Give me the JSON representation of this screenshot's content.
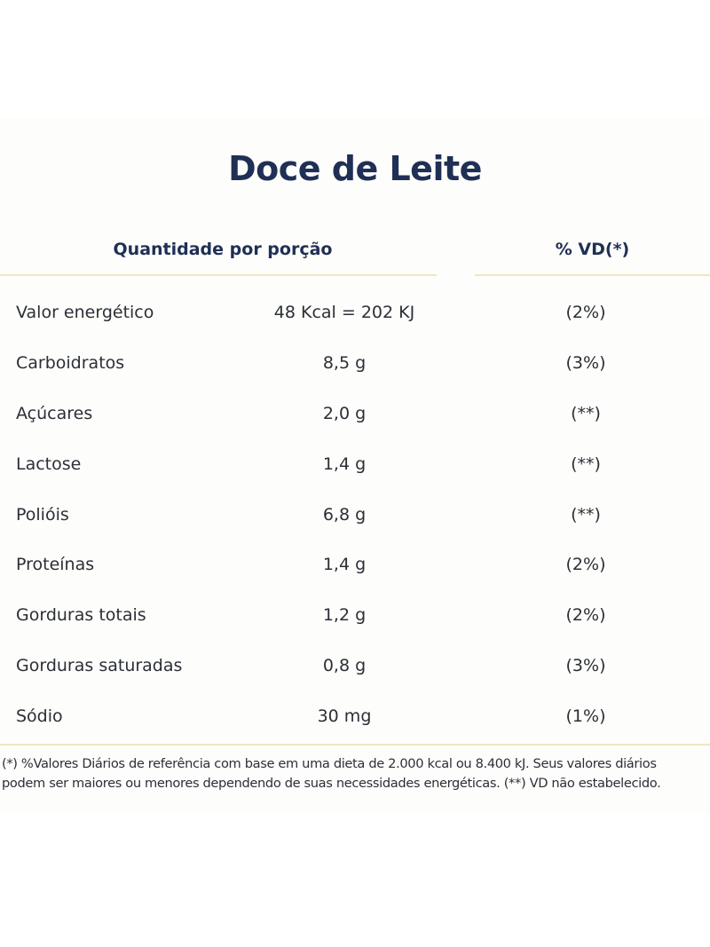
{
  "title": "Doce de Leite",
  "header": {
    "quantity": "Quantidade por porção",
    "vd": "% VD(*)"
  },
  "rows": [
    {
      "nutrient": "Valor energético",
      "amount": "48 Kcal = 202 KJ",
      "vd": "(2%)"
    },
    {
      "nutrient": "Carboidratos",
      "amount": "8,5 g",
      "vd": "(3%)"
    },
    {
      "nutrient": "Açúcares",
      "amount": "2,0 g",
      "vd": "(**)"
    },
    {
      "nutrient": "Lactose",
      "amount": "1,4 g",
      "vd": "(**)"
    },
    {
      "nutrient": "Polióis",
      "amount": "6,8 g",
      "vd": "(**)"
    },
    {
      "nutrient": "Proteínas",
      "amount": "1,4 g",
      "vd": "(2%)"
    },
    {
      "nutrient": "Gorduras totais",
      "amount": "1,2 g",
      "vd": "(2%)"
    },
    {
      "nutrient": "Gorduras saturadas",
      "amount": "0,8 g",
      "vd": "(3%)"
    },
    {
      "nutrient": "Sódio",
      "amount": "30 mg",
      "vd": "(1%)"
    }
  ],
  "footnote": {
    "line1": "(*) %Valores Diários de referência com base em uma dieta de 2.000 kcal ou 8.400 kJ. Seus valores diários",
    "line2": "podem ser maiores ou menores dependendo de suas necessidades energéticas. (**) VD não estabelecido."
  },
  "colors": {
    "title": "#1f2f55",
    "rule": "#f3e5c4",
    "text": "#2b2f36"
  }
}
